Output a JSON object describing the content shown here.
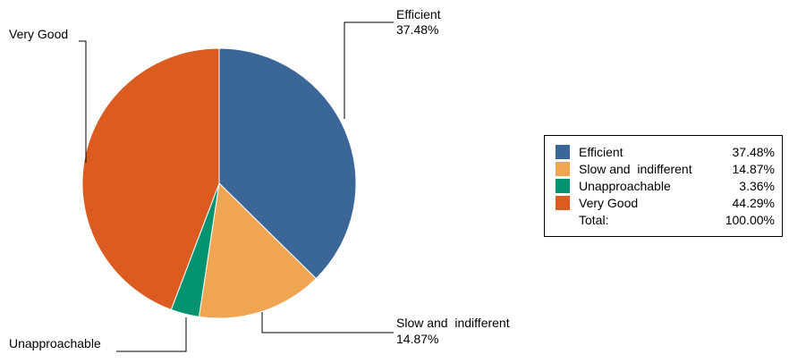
{
  "chart_data": {
    "type": "pie",
    "title": "",
    "slices": [
      {
        "label": "Efficient",
        "value": 37.48,
        "value_label": "37.48%",
        "color": "#3B6698"
      },
      {
        "label": "Slow and  indifferent",
        "value": 14.87,
        "value_label": "14.87%",
        "color": "#F0A552"
      },
      {
        "label": "Unapproachable",
        "value": 3.36,
        "value_label": "3.36%",
        "color": "#03936E"
      },
      {
        "label": "Very Good",
        "value": 44.29,
        "value_label": "44.29%",
        "color": "#DB5B20"
      }
    ],
    "legend": {
      "placement": "right",
      "total_label": "Total:",
      "total_value": "100.00%"
    }
  }
}
